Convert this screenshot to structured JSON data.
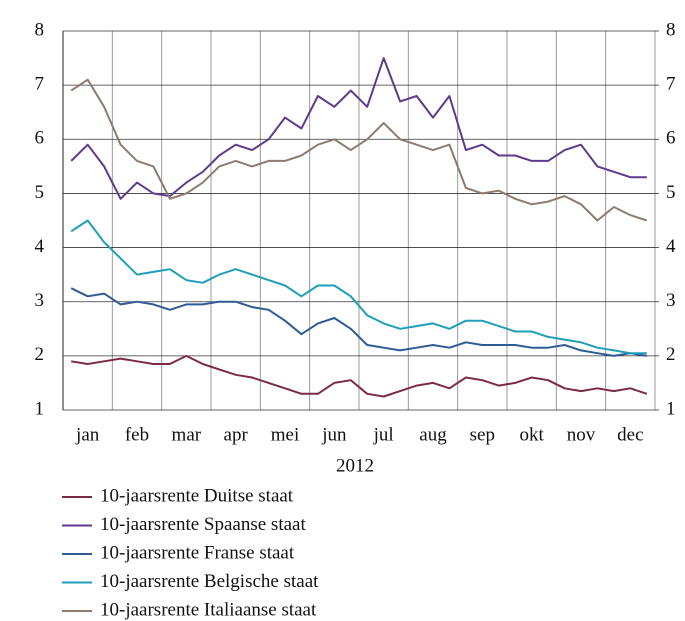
{
  "chart_data": {
    "type": "line",
    "x_label": "2012",
    "categories": [
      null,
      "jan",
      null,
      null,
      "feb",
      null,
      null,
      "mar",
      null,
      null,
      "apr",
      null,
      null,
      "mei",
      null,
      null,
      "jun",
      null,
      null,
      "jul",
      null,
      null,
      "aug",
      null,
      null,
      "sep",
      null,
      null,
      "okt",
      null,
      null,
      "nov",
      null,
      null,
      "dec",
      null
    ],
    "series": [
      {
        "name": "10-jaarsrente Duitse staat",
        "color": "#7b2a45",
        "values": [
          1.9,
          1.85,
          1.9,
          1.95,
          1.9,
          1.85,
          1.85,
          2.0,
          1.85,
          1.75,
          1.65,
          1.6,
          1.5,
          1.4,
          1.3,
          1.3,
          1.5,
          1.55,
          1.3,
          1.25,
          1.35,
          1.45,
          1.5,
          1.4,
          1.6,
          1.55,
          1.45,
          1.5,
          1.6,
          1.55,
          1.4,
          1.35,
          1.4,
          1.35,
          1.4,
          1.3
        ]
      },
      {
        "name": "10-jaarsrente Spaanse staat",
        "color": "#5e3a8c",
        "values": [
          5.6,
          5.9,
          5.5,
          4.9,
          5.2,
          5.0,
          4.95,
          5.2,
          5.4,
          5.7,
          5.9,
          5.8,
          6.0,
          6.4,
          6.2,
          6.8,
          6.6,
          6.9,
          6.6,
          7.5,
          6.7,
          6.8,
          6.4,
          6.8,
          5.8,
          5.9,
          5.7,
          5.7,
          5.6,
          5.6,
          5.8,
          5.9,
          5.5,
          5.4,
          5.3,
          5.3
        ]
      },
      {
        "name": "10-jaarsrente Franse staat",
        "color": "#2e5a96",
        "values": [
          3.25,
          3.1,
          3.15,
          2.95,
          3.0,
          2.95,
          2.85,
          2.95,
          2.95,
          3.0,
          3.0,
          2.9,
          2.85,
          2.65,
          2.4,
          2.6,
          2.7,
          2.5,
          2.2,
          2.15,
          2.1,
          2.15,
          2.2,
          2.15,
          2.25,
          2.2,
          2.2,
          2.2,
          2.15,
          2.15,
          2.2,
          2.1,
          2.05,
          2.0,
          2.05,
          2.0
        ]
      },
      {
        "name": "10-jaarsrente Belgische staat",
        "color": "#1e9fb8",
        "values": [
          4.3,
          4.5,
          4.1,
          3.8,
          3.5,
          3.55,
          3.6,
          3.4,
          3.35,
          3.5,
          3.6,
          3.5,
          3.4,
          3.3,
          3.1,
          3.3,
          3.3,
          3.1,
          2.75,
          2.6,
          2.5,
          2.55,
          2.6,
          2.5,
          2.65,
          2.65,
          2.55,
          2.45,
          2.45,
          2.35,
          2.3,
          2.25,
          2.15,
          2.1,
          2.05,
          2.05
        ]
      },
      {
        "name": "10-jaarsrente Italiaanse staat",
        "color": "#8c7b6e",
        "values": [
          6.9,
          7.1,
          6.6,
          5.9,
          5.6,
          5.5,
          4.9,
          5.0,
          5.2,
          5.5,
          5.6,
          5.5,
          5.6,
          5.6,
          5.7,
          5.9,
          6.0,
          5.8,
          6.0,
          6.3,
          6.0,
          5.9,
          5.8,
          5.9,
          5.1,
          5.0,
          5.05,
          4.9,
          4.8,
          4.85,
          4.95,
          4.8,
          4.5,
          4.75,
          4.6,
          4.5
        ]
      }
    ],
    "ylim": [
      1,
      8
    ],
    "yticks": [
      1,
      2,
      3,
      4,
      5,
      6,
      7,
      8
    ],
    "y2lim": [
      1,
      8
    ],
    "y2ticks": [
      1,
      2,
      3,
      4,
      5,
      6,
      7,
      8
    ],
    "grid": true
  }
}
